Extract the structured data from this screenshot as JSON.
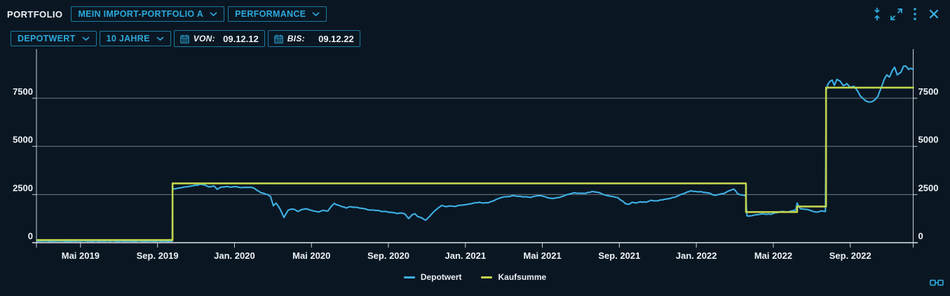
{
  "header": {
    "portfolio_label": "PORTFOLIO",
    "portfolio_select": "MEIN IMPORT-PORTFOLIO A",
    "view_select": "PERFORMANCE",
    "icons": [
      "collapse-panel-icon",
      "fullscreen-icon",
      "kebab-menu-icon",
      "close-icon"
    ]
  },
  "toolbar": {
    "metric_select": "DEPOTWERT",
    "range_select": "10 JAHRE",
    "date_from": {
      "label": "VON:",
      "value": "09.12.12"
    },
    "date_to": {
      "label": "BIS:",
      "value": "09.12.22"
    }
  },
  "footer": {
    "link_icon": "link-icon"
  },
  "colors": {
    "background": "#0a1723",
    "accent_cyan": "#2da9dc",
    "border_cyan": "#1c7aa0",
    "text_white": "#eef3f6",
    "depotwert_blue": "#3fb0e4",
    "kaufsumme_yellow": "#c2d44d",
    "gridline": "#6e7b85"
  },
  "chart_data": {
    "type": "line",
    "title": "",
    "xlabel": "",
    "ylabel": "",
    "x_unit": "months since 2019-01-01 (selected range 09.12.2012 - 09.12.2022, data begins ~Feb 2019)",
    "xlim": [
      1.71,
      47.27
    ],
    "ylim": [
      0,
      10050
    ],
    "yticks": [
      0,
      2500,
      5000,
      7500
    ],
    "grid": "horizontal-only",
    "legend_position": "bottom-center",
    "xticks": [
      {
        "m": 4,
        "label": "Mai 2019"
      },
      {
        "m": 8,
        "label": "Sep. 2019"
      },
      {
        "m": 12,
        "label": "Jan. 2020"
      },
      {
        "m": 16,
        "label": "Mai 2020"
      },
      {
        "m": 20,
        "label": "Sep. 2020"
      },
      {
        "m": 24,
        "label": "Jan. 2021"
      },
      {
        "m": 28,
        "label": "Mai 2021"
      },
      {
        "m": 32,
        "label": "Sep. 2021"
      },
      {
        "m": 36,
        "label": "Jan. 2022"
      },
      {
        "m": 40,
        "label": "Mai 2022"
      },
      {
        "m": 44,
        "label": "Sep. 2022"
      }
    ],
    "series": [
      {
        "name": "Depotwert",
        "color": "#3fb0e4",
        "width": 2.1,
        "noise": 16,
        "seed": 11,
        "points": [
          [
            1.76,
            80
          ],
          [
            8.77,
            80
          ],
          [
            8.78,
            2780
          ],
          [
            8.92,
            2790
          ],
          [
            9.2,
            2850
          ],
          [
            9.46,
            2890
          ],
          [
            9.72,
            2940
          ],
          [
            10.01,
            2990
          ],
          [
            10.27,
            3030
          ],
          [
            10.45,
            3000
          ],
          [
            10.67,
            2900
          ],
          [
            10.92,
            2950
          ],
          [
            11.1,
            2770
          ],
          [
            11.29,
            2880
          ],
          [
            11.58,
            2915
          ],
          [
            11.83,
            2880
          ],
          [
            12.05,
            2905
          ],
          [
            12.31,
            2860
          ],
          [
            12.56,
            2870
          ],
          [
            12.82,
            2880
          ],
          [
            13.0,
            2840
          ],
          [
            13.18,
            2710
          ],
          [
            13.36,
            2600
          ],
          [
            13.55,
            2550
          ],
          [
            13.73,
            2500
          ],
          [
            13.87,
            2400
          ],
          [
            14.02,
            1920
          ],
          [
            14.17,
            2050
          ],
          [
            14.31,
            1850
          ],
          [
            14.46,
            1550
          ],
          [
            14.57,
            1310
          ],
          [
            14.68,
            1500
          ],
          [
            14.79,
            1690
          ],
          [
            14.93,
            1740
          ],
          [
            15.11,
            1730
          ],
          [
            15.29,
            1620
          ],
          [
            15.48,
            1720
          ],
          [
            15.7,
            1760
          ],
          [
            15.91,
            1700
          ],
          [
            16.13,
            1640
          ],
          [
            16.39,
            1600
          ],
          [
            16.61,
            1680
          ],
          [
            16.86,
            1650
          ],
          [
            17.04,
            1900
          ],
          [
            17.19,
            2040
          ],
          [
            17.37,
            1950
          ],
          [
            17.59,
            1870
          ],
          [
            17.81,
            1800
          ],
          [
            18.03,
            1870
          ],
          [
            18.28,
            1840
          ],
          [
            18.5,
            1800
          ],
          [
            18.76,
            1760
          ],
          [
            19.01,
            1700
          ],
          [
            19.27,
            1690
          ],
          [
            19.52,
            1660
          ],
          [
            19.78,
            1620
          ],
          [
            20.03,
            1580
          ],
          [
            20.25,
            1560
          ],
          [
            20.47,
            1510
          ],
          [
            20.65,
            1540
          ],
          [
            20.87,
            1480
          ],
          [
            21.05,
            1255
          ],
          [
            21.23,
            1450
          ],
          [
            21.38,
            1500
          ],
          [
            21.52,
            1360
          ],
          [
            21.71,
            1300
          ],
          [
            21.92,
            1170
          ],
          [
            22.07,
            1300
          ],
          [
            22.22,
            1460
          ],
          [
            22.4,
            1650
          ],
          [
            22.58,
            1800
          ],
          [
            22.76,
            1930
          ],
          [
            22.98,
            1870
          ],
          [
            23.2,
            1910
          ],
          [
            23.45,
            1880
          ],
          [
            23.71,
            1940
          ],
          [
            23.96,
            1970
          ],
          [
            24.22,
            2010
          ],
          [
            24.47,
            2060
          ],
          [
            24.73,
            2100
          ],
          [
            24.98,
            2060
          ],
          [
            25.24,
            2090
          ],
          [
            25.49,
            2190
          ],
          [
            25.75,
            2300
          ],
          [
            25.97,
            2370
          ],
          [
            26.22,
            2400
          ],
          [
            26.51,
            2440
          ],
          [
            26.81,
            2410
          ],
          [
            27.1,
            2380
          ],
          [
            27.39,
            2350
          ],
          [
            27.64,
            2420
          ],
          [
            27.94,
            2440
          ],
          [
            28.23,
            2350
          ],
          [
            28.52,
            2300
          ],
          [
            28.81,
            2340
          ],
          [
            29.1,
            2420
          ],
          [
            29.39,
            2520
          ],
          [
            29.69,
            2590
          ],
          [
            29.98,
            2560
          ],
          [
            30.27,
            2570
          ],
          [
            30.56,
            2650
          ],
          [
            30.85,
            2620
          ],
          [
            31.11,
            2520
          ],
          [
            31.36,
            2450
          ],
          [
            31.65,
            2400
          ],
          [
            31.91,
            2350
          ],
          [
            32.13,
            2180
          ],
          [
            32.31,
            2030
          ],
          [
            32.49,
            1990
          ],
          [
            32.68,
            2100
          ],
          [
            32.89,
            2060
          ],
          [
            33.11,
            2120
          ],
          [
            33.37,
            2100
          ],
          [
            33.62,
            2200
          ],
          [
            33.88,
            2170
          ],
          [
            34.17,
            2220
          ],
          [
            34.43,
            2260
          ],
          [
            34.68,
            2310
          ],
          [
            34.94,
            2380
          ],
          [
            35.19,
            2500
          ],
          [
            35.45,
            2590
          ],
          [
            35.7,
            2690
          ],
          [
            35.96,
            2660
          ],
          [
            36.21,
            2650
          ],
          [
            36.47,
            2610
          ],
          [
            36.72,
            2560
          ],
          [
            36.94,
            2460
          ],
          [
            37.2,
            2510
          ],
          [
            37.45,
            2560
          ],
          [
            37.71,
            2700
          ],
          [
            37.96,
            2780
          ],
          [
            38.14,
            2550
          ],
          [
            38.32,
            2480
          ],
          [
            38.51,
            2450
          ],
          [
            38.57,
            2440
          ],
          [
            38.63,
            1400
          ],
          [
            38.79,
            1390
          ],
          [
            39.01,
            1440
          ],
          [
            39.23,
            1460
          ],
          [
            39.45,
            1500
          ],
          [
            39.67,
            1480
          ],
          [
            39.89,
            1470
          ],
          [
            40.11,
            1550
          ],
          [
            40.33,
            1600
          ],
          [
            40.55,
            1620
          ],
          [
            40.76,
            1600
          ],
          [
            40.98,
            1650
          ],
          [
            41.17,
            1700
          ],
          [
            41.24,
            2060
          ],
          [
            41.31,
            1900
          ],
          [
            41.42,
            1760
          ],
          [
            41.64,
            1730
          ],
          [
            41.86,
            1700
          ],
          [
            42.08,
            1620
          ],
          [
            42.3,
            1590
          ],
          [
            42.48,
            1650
          ],
          [
            42.62,
            1630
          ],
          [
            42.71,
            1620
          ],
          [
            42.75,
            7900
          ],
          [
            42.84,
            8230
          ],
          [
            42.95,
            8380
          ],
          [
            43.06,
            8440
          ],
          [
            43.17,
            8170
          ],
          [
            43.31,
            8480
          ],
          [
            43.46,
            8400
          ],
          [
            43.64,
            8150
          ],
          [
            43.82,
            8260
          ],
          [
            44.0,
            8060
          ],
          [
            44.19,
            8120
          ],
          [
            44.33,
            7950
          ],
          [
            44.52,
            7620
          ],
          [
            44.7,
            7450
          ],
          [
            44.88,
            7330
          ],
          [
            45.06,
            7300
          ],
          [
            45.24,
            7390
          ],
          [
            45.43,
            7590
          ],
          [
            45.61,
            8050
          ],
          [
            45.75,
            8450
          ],
          [
            45.9,
            8710
          ],
          [
            46.04,
            8600
          ],
          [
            46.19,
            8950
          ],
          [
            46.3,
            9110
          ],
          [
            46.44,
            8710
          ],
          [
            46.63,
            8840
          ],
          [
            46.77,
            9160
          ],
          [
            46.88,
            9170
          ],
          [
            47.03,
            8990
          ],
          [
            47.14,
            9060
          ],
          [
            47.27,
            8990
          ]
        ]
      },
      {
        "name": "Kaufsumme",
        "color": "#c2d44d",
        "width": 2.6,
        "noise": 0,
        "seed": 3,
        "points": [
          [
            1.76,
            140
          ],
          [
            8.78,
            140
          ],
          [
            8.78,
            3080
          ],
          [
            38.58,
            3080
          ],
          [
            38.58,
            1590
          ],
          [
            41.24,
            1590
          ],
          [
            41.24,
            1880
          ],
          [
            42.74,
            1880
          ],
          [
            42.74,
            8050
          ],
          [
            47.27,
            8050
          ]
        ]
      }
    ]
  }
}
